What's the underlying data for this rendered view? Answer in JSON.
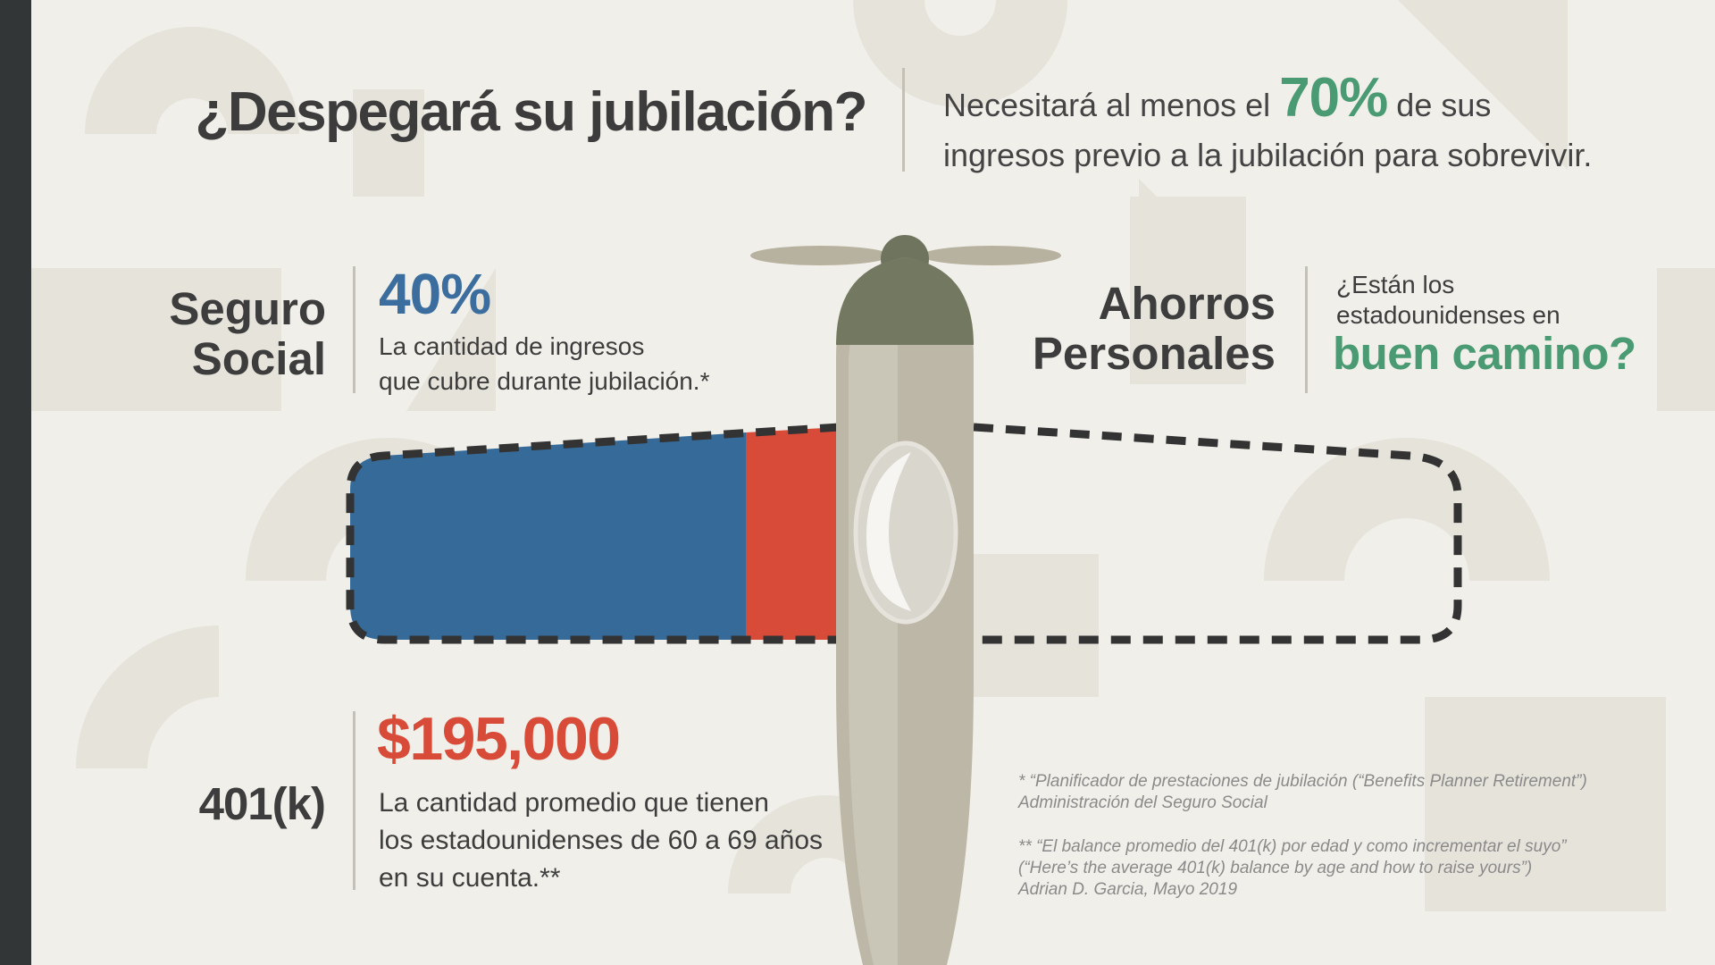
{
  "header": {
    "title": "¿Despegará su jubilación?",
    "subtitle_pre": "Necesitará al menos el",
    "subtitle_pct": "70%",
    "subtitle_post_line1": "de sus",
    "subtitle_line2": "ingresos previo a la jubilación para sobrevivir."
  },
  "social_security": {
    "label_line1": "Seguro",
    "label_line2": "Social",
    "percent": "40%",
    "desc_line1": "La cantidad de ingresos",
    "desc_line2": "que cubre durante jubilación.*"
  },
  "personal_savings": {
    "label_line1": "Ahorros",
    "label_line2": "Personales",
    "question_line1": "¿Están los",
    "question_line2": "estadounidenses en",
    "question_highlight": "buen camino?"
  },
  "retirement_401k": {
    "label": "401(k)",
    "amount": "$195,000",
    "desc_line1": "La cantidad promedio que tienen",
    "desc_line2": "los estadounidenses de 60 a 69 años",
    "desc_line3": "en su cuenta.**"
  },
  "footnotes": {
    "note1_line1": "* “Planificador de prestaciones de jubilación (“Benefits Planner Retirement”)",
    "note1_line2": "Administración del Seguro Social",
    "note2_line1": "** “El balance promedio del 401(k) por edad y como  incrementar el suyo”",
    "note2_line2": "(“Here’s the average 401(k) balance by age and how to raise yours”)",
    "note2_line3": "Adrian D. Garcia, Mayo 2019"
  },
  "wing_fill": {
    "social_security_share": 0.4,
    "savings_401k_share": 0.1,
    "target_share": 0.7
  },
  "colors": {
    "background": "#f1efe9",
    "sidebar": "#323637",
    "social_security_blue": "#366b99",
    "savings_red": "#d84b38",
    "accent_green": "#4a9a73",
    "text_dark": "#3c3c3c",
    "plane_body": "#bcb7a6",
    "plane_nose": "#737861"
  }
}
